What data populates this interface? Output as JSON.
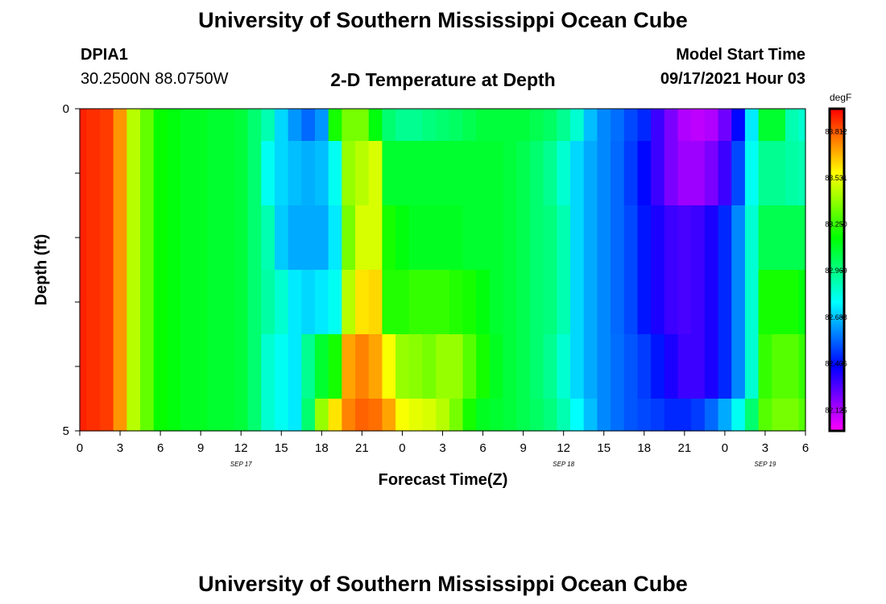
{
  "header": {
    "title_top": "University of Southern Mississippi Ocean Cube",
    "title_bottom": "University of Southern Mississippi Ocean Cube",
    "station_id": "DPIA1",
    "station_coords": "30.2500N  88.0750W",
    "chart_title": "2-D Temperature at Depth",
    "model_start_label": "Model Start Time",
    "model_start_value": "09/17/2021 Hour 03"
  },
  "chart_data": {
    "type": "heatmap",
    "title": "2-D Temperature at Depth",
    "xlabel": "Forecast Time(Z)",
    "ylabel": "Depth (ft)",
    "colorbar_unit": "degF",
    "colorbar_ticks": [
      "83.812",
      "83.531",
      "83.250",
      "82.969",
      "82.688",
      "82.406",
      "82.125"
    ],
    "colorbar_range": [
      82.0,
      83.95
    ],
    "ylim": [
      0,
      5
    ],
    "y_tick_labels": [
      "0",
      "5"
    ],
    "x_tick_labels": [
      "0",
      "3",
      "6",
      "9",
      "12",
      "15",
      "18",
      "21",
      "0",
      "3",
      "6",
      "9",
      "12",
      "15",
      "18",
      "21",
      "0",
      "3",
      "6"
    ],
    "date_labels": [
      {
        "label": "SEP 17",
        "hour": 12
      },
      {
        "label": "SEP 18",
        "hour": 36
      },
      {
        "label": "SEP 19",
        "hour": 51
      }
    ],
    "x_hours": [
      0,
      1,
      2,
      3,
      4,
      5,
      6,
      7,
      8,
      9,
      10,
      11,
      12,
      13,
      14,
      15,
      16,
      17,
      18,
      19,
      20,
      21,
      22,
      23,
      24,
      25,
      26,
      27,
      28,
      29,
      30,
      31,
      32,
      33,
      34,
      35,
      36,
      37,
      38,
      39,
      40,
      41,
      42,
      43,
      44,
      45,
      46,
      47,
      48,
      49,
      50,
      51,
      52,
      53,
      54
    ],
    "depth_layers_ft": [
      0.25,
      1.25,
      2.0,
      3.0,
      4.0,
      4.75
    ],
    "series": [
      {
        "depth_range_ft": [
          0,
          0.5
        ],
        "values": [
          83.9,
          83.88,
          83.86,
          83.72,
          83.45,
          83.32,
          83.18,
          83.15,
          83.12,
          83.12,
          83.1,
          83.1,
          83.08,
          83.0,
          82.9,
          82.72,
          82.62,
          82.55,
          82.62,
          83.2,
          83.35,
          83.35,
          83.15,
          83.0,
          82.95,
          82.95,
          82.98,
          83.0,
          83.02,
          83.05,
          83.08,
          83.08,
          83.08,
          83.08,
          83.05,
          83.02,
          82.95,
          82.85,
          82.68,
          82.6,
          82.56,
          82.5,
          82.45,
          82.3,
          82.2,
          82.12,
          82.1,
          82.12,
          82.22,
          82.4,
          82.75,
          83.1,
          83.1,
          82.9,
          82.85
        ]
      },
      {
        "depth_range_ft": [
          0.5,
          1.5
        ],
        "values": [
          83.9,
          83.88,
          83.86,
          83.72,
          83.45,
          83.32,
          83.18,
          83.15,
          83.12,
          83.12,
          83.1,
          83.1,
          83.08,
          83.0,
          82.8,
          82.72,
          82.68,
          82.66,
          82.68,
          82.8,
          83.4,
          83.45,
          83.5,
          83.1,
          83.1,
          83.1,
          83.1,
          83.1,
          83.1,
          83.1,
          83.1,
          83.1,
          83.08,
          83.05,
          83.0,
          82.95,
          82.85,
          82.72,
          82.65,
          82.6,
          82.55,
          82.48,
          82.4,
          82.3,
          82.2,
          82.15,
          82.15,
          82.2,
          82.3,
          82.5,
          82.8,
          82.95,
          82.95,
          82.92,
          82.9
        ]
      },
      {
        "depth_range_ft": [
          1.5,
          2.5
        ],
        "values": [
          83.9,
          83.88,
          83.86,
          83.72,
          83.45,
          83.32,
          83.18,
          83.15,
          83.12,
          83.12,
          83.1,
          83.1,
          83.08,
          83.0,
          82.9,
          82.7,
          82.65,
          82.65,
          82.65,
          82.75,
          83.35,
          83.5,
          83.5,
          83.2,
          83.15,
          83.12,
          83.12,
          83.12,
          83.12,
          83.1,
          83.1,
          83.1,
          83.08,
          83.05,
          83.0,
          82.98,
          82.9,
          82.72,
          82.65,
          82.6,
          82.55,
          82.5,
          82.42,
          82.35,
          82.3,
          82.28,
          82.3,
          82.35,
          82.45,
          82.6,
          82.85,
          83.05,
          83.05,
          83.05,
          83.05
        ]
      },
      {
        "depth_range_ft": [
          2.5,
          3.5
        ],
        "values": [
          83.9,
          83.88,
          83.86,
          83.72,
          83.45,
          83.32,
          83.18,
          83.15,
          83.12,
          83.12,
          83.1,
          83.1,
          83.08,
          83.0,
          82.92,
          82.85,
          82.75,
          82.72,
          82.75,
          82.8,
          83.45,
          83.6,
          83.62,
          83.22,
          83.22,
          83.25,
          83.25,
          83.25,
          83.22,
          83.2,
          83.15,
          83.1,
          83.08,
          83.05,
          83.0,
          82.98,
          82.9,
          82.72,
          82.65,
          82.6,
          82.55,
          82.5,
          82.42,
          82.35,
          82.3,
          82.28,
          82.3,
          82.35,
          82.45,
          82.6,
          82.85,
          83.2,
          83.2,
          83.2,
          83.15
        ]
      },
      {
        "depth_range_ft": [
          3.5,
          4.5
        ],
        "values": [
          83.9,
          83.88,
          83.86,
          83.72,
          83.45,
          83.32,
          83.18,
          83.15,
          83.12,
          83.12,
          83.1,
          83.1,
          83.08,
          83.0,
          82.85,
          82.8,
          82.75,
          82.95,
          83.1,
          83.2,
          83.7,
          83.75,
          83.7,
          83.55,
          83.4,
          83.38,
          83.35,
          83.4,
          83.4,
          83.3,
          83.2,
          83.12,
          83.08,
          83.05,
          83.0,
          82.95,
          82.85,
          82.72,
          82.65,
          82.6,
          82.56,
          82.52,
          82.48,
          82.42,
          82.35,
          82.3,
          82.3,
          82.35,
          82.45,
          82.6,
          82.85,
          83.25,
          83.3,
          83.3,
          83.25
        ]
      },
      {
        "depth_range_ft": [
          4.5,
          5.0
        ],
        "values": [
          83.9,
          83.88,
          83.86,
          83.72,
          83.45,
          83.32,
          83.18,
          83.15,
          83.12,
          83.12,
          83.1,
          83.1,
          83.08,
          83.0,
          82.85,
          82.8,
          82.75,
          83.0,
          83.4,
          83.6,
          83.75,
          83.8,
          83.78,
          83.7,
          83.55,
          83.52,
          83.5,
          83.45,
          83.35,
          83.2,
          83.12,
          83.1,
          83.08,
          83.05,
          83.02,
          82.98,
          82.9,
          82.78,
          82.68,
          82.6,
          82.56,
          82.52,
          82.5,
          82.48,
          82.45,
          82.45,
          82.48,
          82.55,
          82.65,
          82.8,
          83.0,
          83.3,
          83.35,
          83.35,
          83.3
        ]
      }
    ]
  }
}
